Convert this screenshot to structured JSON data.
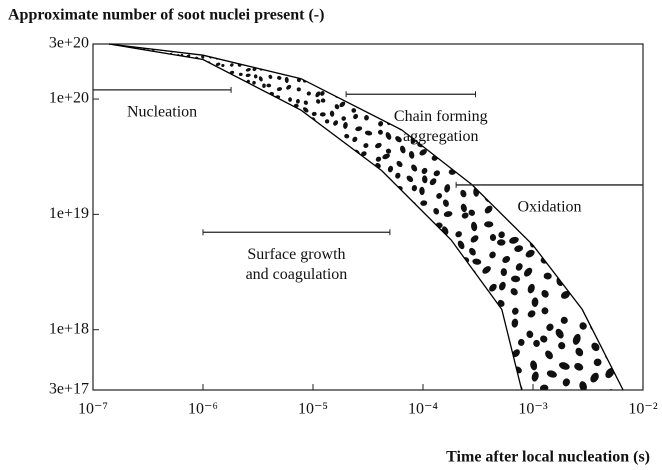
{
  "chart_data": {
    "type": "band",
    "title": "Approximate number of soot nuclei present (-)",
    "x_label": "Time after local nucleation (s)",
    "log_x": true,
    "log_y": true,
    "xlim": [
      1e-07,
      0.01
    ],
    "xticks": [
      {
        "value": 1e-07,
        "label": "10⁻⁷"
      },
      {
        "value": 1e-06,
        "label": "10⁻⁶"
      },
      {
        "value": 1e-05,
        "label": "10⁻⁵"
      },
      {
        "value": 0.0001,
        "label": "10⁻⁴"
      },
      {
        "value": 0.001,
        "label": "10⁻³"
      },
      {
        "value": 0.01,
        "label": "10⁻²"
      }
    ],
    "ylim": [
      3e+17,
      3e+20
    ],
    "yticks": [
      {
        "value": 3e+20,
        "label": "3e+20"
      },
      {
        "value": 1e+20,
        "label": "1e+20"
      },
      {
        "value": 1e+19,
        "label": "1e+19"
      },
      {
        "value": 1e+18,
        "label": "1e+18"
      },
      {
        "value": 3e+17,
        "label": "3e+17"
      }
    ],
    "color": "#000000",
    "series": [
      {
        "x": [
          1.4e-07,
          1e-06,
          7.8e-06,
          6.4e-05,
          0.00028,
          0.001,
          0.0028,
          0.0066
        ],
        "values": [
          3e+20,
          2.4e+20,
          1.5e+20,
          5.4e+19,
          1.8e+19,
          5.4e+18,
          1.5e+18,
          3e+17
        ]
      },
      {
        "x": [
          1.4e-07,
          1e-06,
          7.8e-06,
          4.2e-05,
          0.00018,
          0.00052,
          0.00079
        ],
        "values": [
          3e+20,
          2.2e+20,
          8e+19,
          2.4e+19,
          6e+18,
          1.5e+18,
          3e+17
        ]
      }
    ],
    "annotations": [
      {
        "text": [
          "Nucleation"
        ],
        "x": [
          1e-07,
          1.8e-06
        ],
        "y": 1.2e+20
      },
      {
        "text": [
          "Chain forming",
          "aggregation"
        ],
        "x": [
          2e-05,
          0.0003
        ],
        "y": 1.1e+20
      },
      {
        "text": [
          "Oxidation"
        ],
        "x": [
          0.0002,
          0.01
        ],
        "y": 1.8e+19
      },
      {
        "text": [
          "Surface growth",
          "and coagulation"
        ],
        "x": [
          1e-06,
          5e-05
        ],
        "y": 7e+18
      }
    ]
  }
}
